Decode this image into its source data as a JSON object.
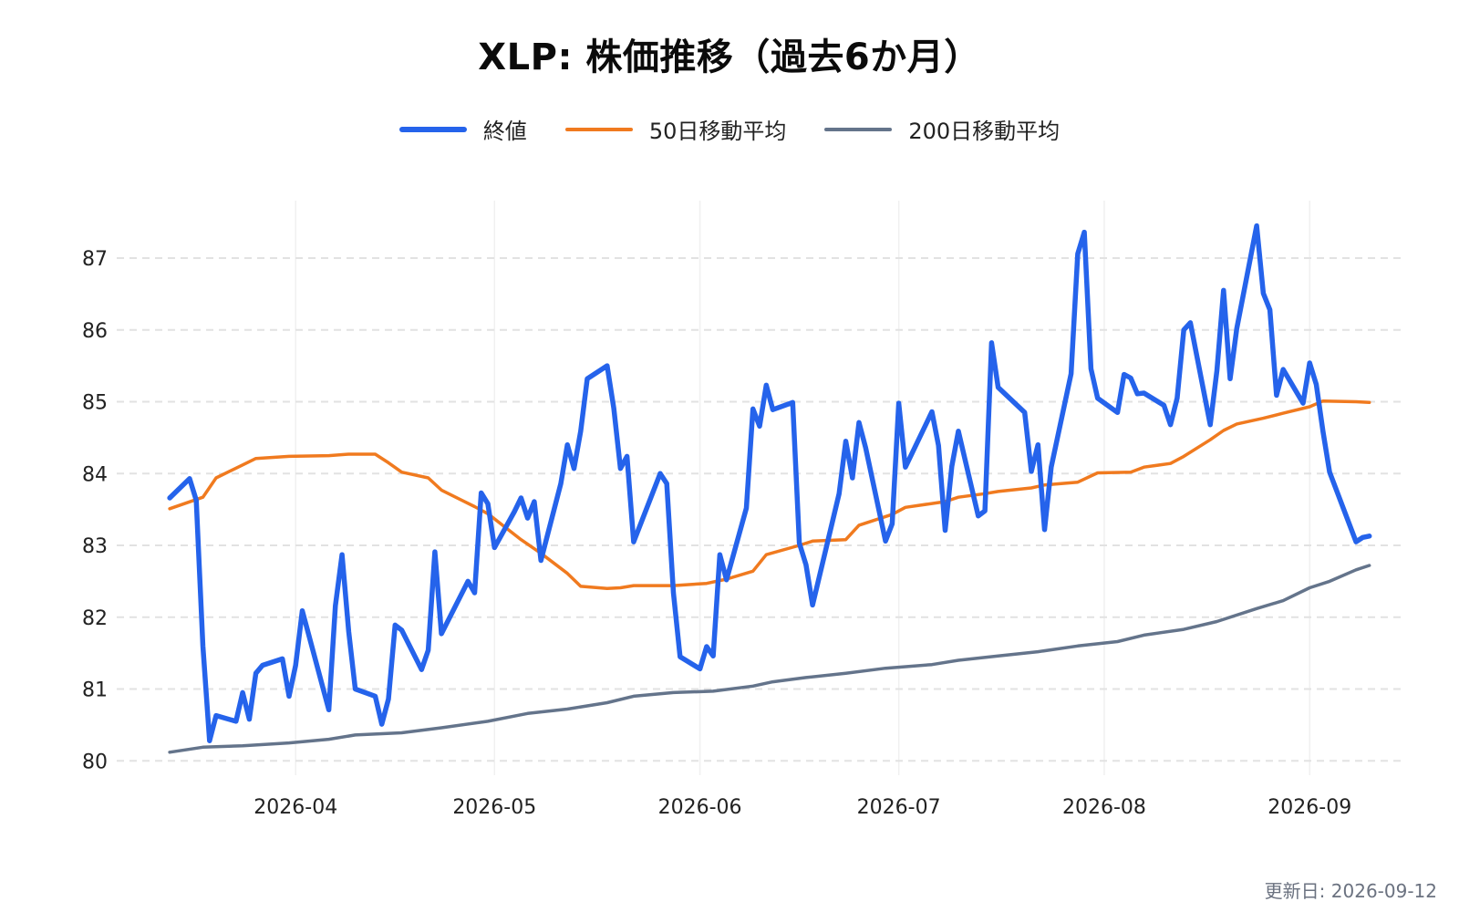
{
  "chart_data": {
    "type": "line",
    "title": "XLP: 株価推移（過去6か月）",
    "xlabel": "",
    "ylabel": "",
    "ylim": [
      79.8,
      87.8
    ],
    "yticks": [
      80,
      81,
      82,
      83,
      84,
      85,
      86,
      87
    ],
    "xticks": [
      "2026-04",
      "2026-05",
      "2026-06",
      "2026-07",
      "2026-08",
      "2026-09"
    ],
    "grid": true,
    "legend_position": "top-center",
    "series": [
      {
        "name": "終値",
        "color": "#2563eb",
        "dates": [
          "2026-03-13",
          "2026-03-16",
          "2026-03-17",
          "2026-03-18",
          "2026-03-19",
          "2026-03-20",
          "2026-03-23",
          "2026-03-24",
          "2026-03-25",
          "2026-03-26",
          "2026-03-27",
          "2026-03-30",
          "2026-03-31",
          "2026-04-01",
          "2026-04-02",
          "2026-04-06",
          "2026-04-07",
          "2026-04-08",
          "2026-04-09",
          "2026-04-10",
          "2026-04-13",
          "2026-04-14",
          "2026-04-15",
          "2026-04-16",
          "2026-04-17",
          "2026-04-20",
          "2026-04-21",
          "2026-04-22",
          "2026-04-23",
          "2026-04-27",
          "2026-04-28",
          "2026-04-29",
          "2026-04-30",
          "2026-05-01",
          "2026-05-04",
          "2026-05-05",
          "2026-05-06",
          "2026-05-07",
          "2026-05-08",
          "2026-05-11",
          "2026-05-12",
          "2026-05-13",
          "2026-05-14",
          "2026-05-15",
          "2026-05-18",
          "2026-05-19",
          "2026-05-20",
          "2026-05-21",
          "2026-05-22",
          "2026-05-26",
          "2026-05-27",
          "2026-05-28",
          "2026-05-29",
          "2026-06-01",
          "2026-06-02",
          "2026-06-03",
          "2026-06-04",
          "2026-06-05",
          "2026-06-08",
          "2026-06-09",
          "2026-06-10",
          "2026-06-11",
          "2026-06-12",
          "2026-06-15",
          "2026-06-16",
          "2026-06-17",
          "2026-06-18",
          "2026-06-22",
          "2026-06-23",
          "2026-06-24",
          "2026-06-25",
          "2026-06-26",
          "2026-06-29",
          "2026-06-30",
          "2026-07-01",
          "2026-07-02",
          "2026-07-06",
          "2026-07-07",
          "2026-07-08",
          "2026-07-09",
          "2026-07-10",
          "2026-07-13",
          "2026-07-14",
          "2026-07-15",
          "2026-07-16",
          "2026-07-20",
          "2026-07-21",
          "2026-07-22",
          "2026-07-23",
          "2026-07-24",
          "2026-07-27",
          "2026-07-28",
          "2026-07-29",
          "2026-07-30",
          "2026-07-31",
          "2026-08-03",
          "2026-08-04",
          "2026-08-05",
          "2026-08-06",
          "2026-08-07",
          "2026-08-10",
          "2026-08-11",
          "2026-08-12",
          "2026-08-13",
          "2026-08-14",
          "2026-08-17",
          "2026-08-18",
          "2026-08-19",
          "2026-08-20",
          "2026-08-21",
          "2026-08-24",
          "2026-08-25",
          "2026-08-26",
          "2026-08-27",
          "2026-08-28",
          "2026-08-31",
          "2026-09-01",
          "2026-09-02",
          "2026-09-03",
          "2026-09-04",
          "2026-09-08",
          "2026-09-09",
          "2026-09-10"
        ],
        "values": [
          83.66,
          83.93,
          83.63,
          81.6,
          80.28,
          80.63,
          80.55,
          80.95,
          80.58,
          81.22,
          81.33,
          81.42,
          80.9,
          81.33,
          82.09,
          80.71,
          82.16,
          82.87,
          81.8,
          81.0,
          80.9,
          80.51,
          80.86,
          81.89,
          81.82,
          81.27,
          81.54,
          82.91,
          81.77,
          82.5,
          82.34,
          83.73,
          83.58,
          82.97,
          83.47,
          83.66,
          83.38,
          83.61,
          82.79,
          83.86,
          84.4,
          84.07,
          84.59,
          85.32,
          85.5,
          84.91,
          84.07,
          84.24,
          83.05,
          84.0,
          83.86,
          82.34,
          81.45,
          81.28,
          81.59,
          81.46,
          82.87,
          82.52,
          83.52,
          84.9,
          84.66,
          85.23,
          84.89,
          84.99,
          83.03,
          82.73,
          82.17,
          83.72,
          84.45,
          83.94,
          84.71,
          84.36,
          83.06,
          83.3,
          84.98,
          84.09,
          84.86,
          84.39,
          83.21,
          84.1,
          84.59,
          83.41,
          83.48,
          85.82,
          85.2,
          84.85,
          84.03,
          84.4,
          83.22,
          84.09,
          85.39,
          87.06,
          87.36,
          85.46,
          85.05,
          84.85,
          85.38,
          85.33,
          85.11,
          85.12,
          84.95,
          84.68,
          85.05,
          86.0,
          86.1,
          84.68,
          85.43,
          86.55,
          85.32,
          86.02,
          87.45,
          86.51,
          86.28,
          85.09,
          85.45,
          84.98,
          85.54,
          85.24,
          84.59,
          84.02,
          83.05,
          83.11,
          83.13
        ]
      },
      {
        "name": "50日移動平均",
        "color": "#f07a1f",
        "dates": [
          "2026-03-13",
          "2026-03-18",
          "2026-03-20",
          "2026-03-24",
          "2026-03-26",
          "2026-03-31",
          "2026-04-06",
          "2026-04-09",
          "2026-04-13",
          "2026-04-15",
          "2026-04-17",
          "2026-04-21",
          "2026-04-23",
          "2026-04-28",
          "2026-04-30",
          "2026-05-05",
          "2026-05-08",
          "2026-05-12",
          "2026-05-14",
          "2026-05-18",
          "2026-05-20",
          "2026-05-22",
          "2026-05-28",
          "2026-06-02",
          "2026-06-05",
          "2026-06-09",
          "2026-06-11",
          "2026-06-16",
          "2026-06-18",
          "2026-06-23",
          "2026-06-25",
          "2026-06-30",
          "2026-07-02",
          "2026-07-08",
          "2026-07-10",
          "2026-07-14",
          "2026-07-16",
          "2026-07-21",
          "2026-07-23",
          "2026-07-28",
          "2026-07-31",
          "2026-08-05",
          "2026-08-07",
          "2026-08-11",
          "2026-08-13",
          "2026-08-17",
          "2026-08-19",
          "2026-08-21",
          "2026-08-25",
          "2026-08-28",
          "2026-09-01",
          "2026-09-03",
          "2026-09-08",
          "2026-09-10"
        ],
        "values": [
          83.51,
          83.67,
          83.94,
          84.12,
          84.21,
          84.24,
          84.25,
          84.27,
          84.27,
          84.15,
          84.02,
          83.94,
          83.77,
          83.54,
          83.44,
          83.08,
          82.89,
          82.61,
          82.43,
          82.4,
          82.41,
          82.44,
          82.44,
          82.47,
          82.53,
          82.64,
          82.87,
          83.0,
          83.06,
          83.08,
          83.28,
          83.43,
          83.53,
          83.61,
          83.67,
          83.72,
          83.75,
          83.8,
          83.84,
          83.88,
          84.01,
          84.02,
          84.09,
          84.14,
          84.24,
          84.47,
          84.6,
          84.69,
          84.77,
          84.84,
          84.93,
          85.01,
          85.0,
          84.99
        ]
      },
      {
        "name": "200日移動平均",
        "color": "#64748b",
        "dates": [
          "2026-03-13",
          "2026-03-18",
          "2026-03-24",
          "2026-03-31",
          "2026-04-06",
          "2026-04-10",
          "2026-04-17",
          "2026-04-23",
          "2026-04-30",
          "2026-05-06",
          "2026-05-12",
          "2026-05-18",
          "2026-05-22",
          "2026-05-28",
          "2026-06-03",
          "2026-06-09",
          "2026-06-12",
          "2026-06-17",
          "2026-06-23",
          "2026-06-29",
          "2026-07-06",
          "2026-07-10",
          "2026-07-16",
          "2026-07-22",
          "2026-07-28",
          "2026-08-03",
          "2026-08-07",
          "2026-08-13",
          "2026-08-18",
          "2026-08-24",
          "2026-08-28",
          "2026-09-01",
          "2026-09-04",
          "2026-09-08",
          "2026-09-10"
        ],
        "values": [
          80.12,
          80.19,
          80.21,
          80.25,
          80.3,
          80.36,
          80.39,
          80.46,
          80.55,
          80.66,
          80.72,
          80.81,
          80.9,
          80.95,
          80.97,
          81.04,
          81.1,
          81.16,
          81.22,
          81.29,
          81.34,
          81.4,
          81.46,
          81.52,
          81.6,
          81.66,
          81.75,
          81.83,
          81.94,
          82.12,
          82.23,
          82.41,
          82.5,
          82.66,
          82.72
        ]
      }
    ]
  },
  "legend": {
    "items": [
      {
        "label": "終値",
        "color": "#2563eb"
      },
      {
        "label": "50日移動平均",
        "color": "#f07a1f"
      },
      {
        "label": "200日移動平均",
        "color": "#64748b"
      }
    ]
  },
  "footer": {
    "update_label": "更新日: 2026-09-12"
  },
  "colors": {
    "grid_horizontal": "#e2e2e2",
    "grid_vertical": "#f0f0f0",
    "axis_text": "#222222",
    "footer_text": "#6b7280"
  }
}
